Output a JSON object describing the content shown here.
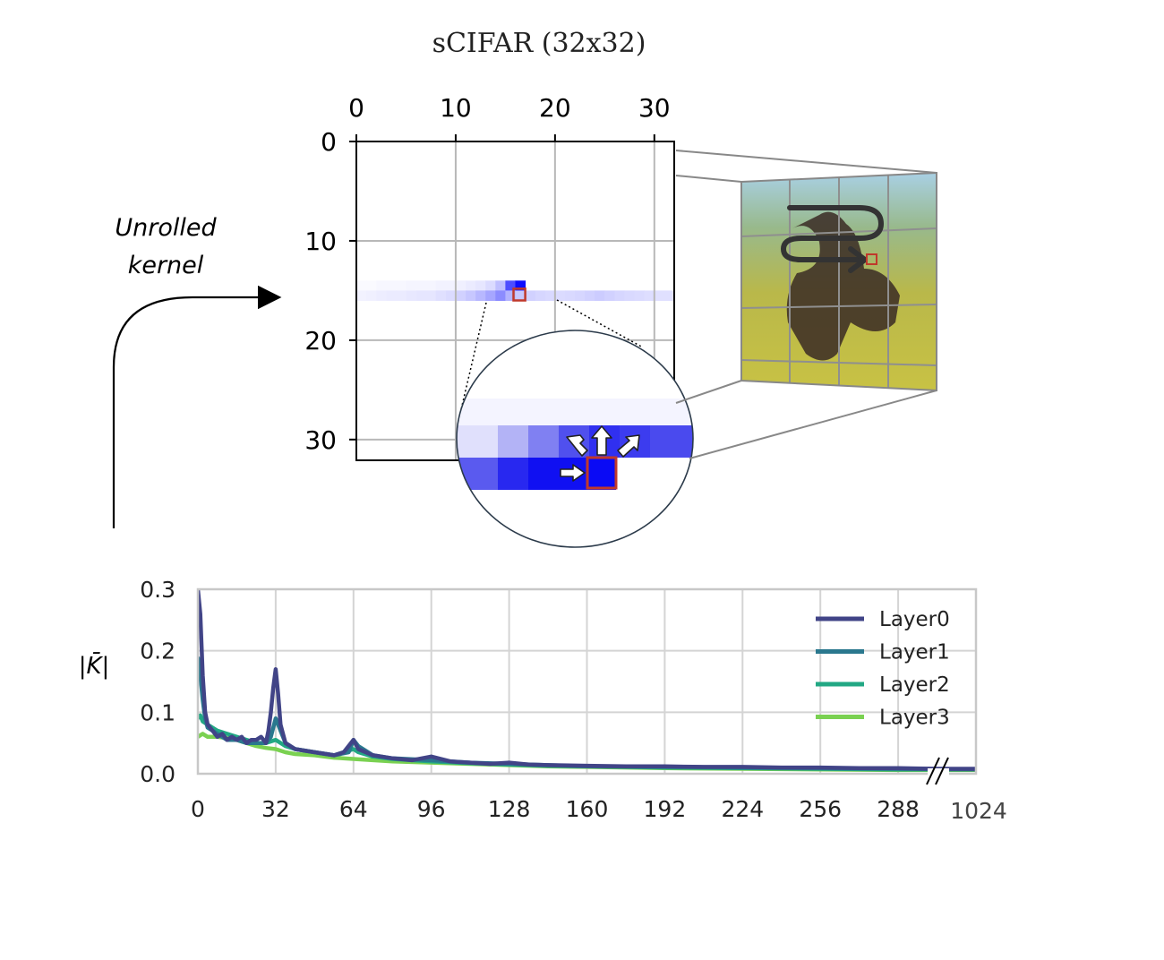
{
  "figure": {
    "title": "sCIFAR (32x32)",
    "annotation": {
      "line1": "Unrolled",
      "line2": "kernel"
    }
  },
  "heatmap": {
    "type": "heatmap",
    "x_ticks": [
      "0",
      "10",
      "20",
      "30"
    ],
    "y_ticks": [
      "0",
      "10",
      "20",
      "30"
    ],
    "xlim": [
      0,
      32
    ],
    "ylim": [
      0,
      32
    ],
    "grid": true,
    "colormap": "white-to-blue",
    "row_15": [
      0.05,
      0.06,
      0.07,
      0.08,
      0.08,
      0.09,
      0.1,
      0.1,
      0.12,
      0.14,
      0.18,
      0.22,
      0.28,
      0.35,
      0.45,
      0.3,
      0.22,
      0.18,
      0.16,
      0.15,
      0.14,
      0.15,
      0.16,
      0.18,
      0.2,
      0.18,
      0.16,
      0.15,
      0.14,
      0.13,
      0.12,
      0.12
    ],
    "row_14": [
      0.02,
      0.02,
      0.03,
      0.03,
      0.03,
      0.04,
      0.04,
      0.04,
      0.05,
      0.05,
      0.06,
      0.08,
      0.1,
      0.14,
      0.25,
      0.7,
      0.95,
      0.0,
      0.0,
      0.0,
      0.0,
      0.0,
      0.0,
      0.0,
      0.0,
      0.0,
      0.0,
      0.0,
      0.0,
      0.0,
      0.0,
      0.0
    ],
    "highlight_cell": [
      16,
      15
    ],
    "colors": {
      "cell": "#1a1aff",
      "highlight": "#c0392b",
      "grid": "#b8b8b8"
    }
  },
  "chart_data": {
    "type": "line",
    "xlabel": "",
    "ylabel": "|K̄|",
    "x_ticks": [
      "0",
      "32",
      "64",
      "96",
      "128",
      "160",
      "192",
      "224",
      "256",
      "288",
      "1024"
    ],
    "y_ticks": [
      "0.0",
      "0.1",
      "0.2",
      "0.3"
    ],
    "xlim": [
      0,
      320
    ],
    "ylim": [
      0,
      0.3
    ],
    "grid": true,
    "legend_position": "top-right",
    "axis_break": "between 288 and 1024",
    "series": [
      {
        "name": "Layer0",
        "color": "#414487",
        "points": [
          [
            0,
            0.3
          ],
          [
            1,
            0.26
          ],
          [
            2,
            0.16
          ],
          [
            3,
            0.1
          ],
          [
            4,
            0.08
          ],
          [
            6,
            0.07
          ],
          [
            8,
            0.06
          ],
          [
            10,
            0.065
          ],
          [
            12,
            0.055
          ],
          [
            14,
            0.06
          ],
          [
            16,
            0.055
          ],
          [
            18,
            0.06
          ],
          [
            20,
            0.05
          ],
          [
            22,
            0.055
          ],
          [
            24,
            0.055
          ],
          [
            26,
            0.06
          ],
          [
            28,
            0.05
          ],
          [
            29,
            0.07
          ],
          [
            30,
            0.1
          ],
          [
            31,
            0.14
          ],
          [
            32,
            0.17
          ],
          [
            33,
            0.13
          ],
          [
            34,
            0.08
          ],
          [
            36,
            0.05
          ],
          [
            40,
            0.04
          ],
          [
            48,
            0.035
          ],
          [
            56,
            0.03
          ],
          [
            60,
            0.035
          ],
          [
            64,
            0.055
          ],
          [
            66,
            0.04
          ],
          [
            72,
            0.03
          ],
          [
            80,
            0.025
          ],
          [
            88,
            0.022
          ],
          [
            96,
            0.028
          ],
          [
            104,
            0.02
          ],
          [
            112,
            0.018
          ],
          [
            120,
            0.016
          ],
          [
            128,
            0.018
          ],
          [
            136,
            0.015
          ],
          [
            144,
            0.014
          ],
          [
            160,
            0.013
          ],
          [
            176,
            0.012
          ],
          [
            192,
            0.012
          ],
          [
            208,
            0.011
          ],
          [
            224,
            0.011
          ],
          [
            240,
            0.01
          ],
          [
            256,
            0.01
          ],
          [
            272,
            0.009
          ],
          [
            288,
            0.009
          ],
          [
            304,
            0.008
          ],
          [
            320,
            0.008
          ]
        ]
      },
      {
        "name": "Layer1",
        "color": "#2a788e",
        "points": [
          [
            0,
            0.19
          ],
          [
            1,
            0.16
          ],
          [
            2,
            0.12
          ],
          [
            3,
            0.09
          ],
          [
            4,
            0.075
          ],
          [
            6,
            0.07
          ],
          [
            8,
            0.065
          ],
          [
            10,
            0.06
          ],
          [
            12,
            0.055
          ],
          [
            16,
            0.055
          ],
          [
            20,
            0.05
          ],
          [
            24,
            0.05
          ],
          [
            28,
            0.05
          ],
          [
            30,
            0.06
          ],
          [
            32,
            0.09
          ],
          [
            34,
            0.07
          ],
          [
            36,
            0.05
          ],
          [
            40,
            0.04
          ],
          [
            48,
            0.035
          ],
          [
            56,
            0.03
          ],
          [
            62,
            0.035
          ],
          [
            64,
            0.055
          ],
          [
            66,
            0.045
          ],
          [
            72,
            0.03
          ],
          [
            80,
            0.025
          ],
          [
            96,
            0.022
          ],
          [
            112,
            0.018
          ],
          [
            128,
            0.016
          ],
          [
            144,
            0.014
          ],
          [
            160,
            0.012
          ],
          [
            192,
            0.011
          ],
          [
            224,
            0.01
          ],
          [
            256,
            0.009
          ],
          [
            288,
            0.008
          ],
          [
            320,
            0.007
          ]
        ]
      },
      {
        "name": "Layer2",
        "color": "#22a884",
        "points": [
          [
            0,
            0.09
          ],
          [
            1,
            0.095
          ],
          [
            2,
            0.085
          ],
          [
            4,
            0.08
          ],
          [
            6,
            0.075
          ],
          [
            8,
            0.07
          ],
          [
            12,
            0.065
          ],
          [
            16,
            0.06
          ],
          [
            20,
            0.055
          ],
          [
            24,
            0.05
          ],
          [
            28,
            0.05
          ],
          [
            32,
            0.055
          ],
          [
            36,
            0.045
          ],
          [
            40,
            0.04
          ],
          [
            48,
            0.035
          ],
          [
            56,
            0.03
          ],
          [
            64,
            0.04
          ],
          [
            66,
            0.035
          ],
          [
            72,
            0.028
          ],
          [
            80,
            0.024
          ],
          [
            96,
            0.02
          ],
          [
            112,
            0.017
          ],
          [
            128,
            0.015
          ],
          [
            144,
            0.013
          ],
          [
            160,
            0.012
          ],
          [
            192,
            0.01
          ],
          [
            224,
            0.009
          ],
          [
            256,
            0.008
          ],
          [
            288,
            0.007
          ],
          [
            320,
            0.007
          ]
        ]
      },
      {
        "name": "Layer3",
        "color": "#7ad151",
        "points": [
          [
            0,
            0.06
          ],
          [
            2,
            0.065
          ],
          [
            4,
            0.06
          ],
          [
            8,
            0.06
          ],
          [
            12,
            0.058
          ],
          [
            16,
            0.055
          ],
          [
            20,
            0.05
          ],
          [
            24,
            0.045
          ],
          [
            28,
            0.042
          ],
          [
            32,
            0.04
          ],
          [
            36,
            0.035
          ],
          [
            40,
            0.032
          ],
          [
            48,
            0.03
          ],
          [
            56,
            0.026
          ],
          [
            64,
            0.024
          ],
          [
            72,
            0.022
          ],
          [
            80,
            0.02
          ],
          [
            96,
            0.018
          ],
          [
            112,
            0.016
          ],
          [
            128,
            0.014
          ],
          [
            144,
            0.012
          ],
          [
            160,
            0.011
          ],
          [
            192,
            0.009
          ],
          [
            224,
            0.008
          ],
          [
            256,
            0.007
          ],
          [
            288,
            0.006
          ],
          [
            320,
            0.006
          ]
        ]
      }
    ]
  }
}
